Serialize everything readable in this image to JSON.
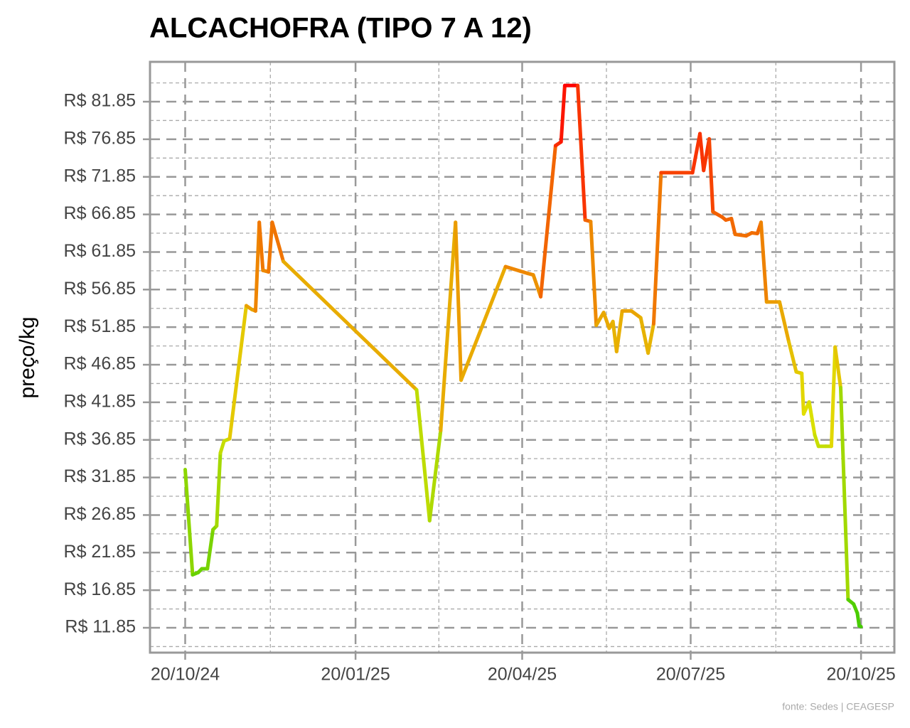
{
  "chart_data": {
    "type": "line",
    "title": "ALCACHOFRA (TIPO 7 A 12)",
    "y_label": "preço/kg",
    "caption": "fonte: Sedes | CEAGESP",
    "x": [
      "2024-10-20",
      "2024-10-24",
      "2024-10-27",
      "2024-10-29",
      "2024-11-01",
      "2024-11-04",
      "2024-11-06",
      "2024-11-08",
      "2024-11-10",
      "2024-11-13",
      "2024-11-22",
      "2024-11-25",
      "2024-11-27",
      "2024-11-29",
      "2024-12-01",
      "2024-12-04",
      "2024-12-06",
      "2024-12-12",
      "2025-02-22",
      "2025-03-01",
      "2025-03-07",
      "2025-03-15",
      "2025-03-18",
      "2025-04-11",
      "2025-04-23",
      "2025-04-26",
      "2025-04-30",
      "2025-05-08",
      "2025-05-11",
      "2025-05-13",
      "2025-05-20",
      "2025-05-24",
      "2025-05-27",
      "2025-05-30",
      "2025-06-03",
      "2025-06-06",
      "2025-06-08",
      "2025-06-10",
      "2025-06-13",
      "2025-06-18",
      "2025-06-23",
      "2025-06-27",
      "2025-06-30",
      "2025-07-04",
      "2025-07-21",
      "2025-07-25",
      "2025-07-27",
      "2025-07-30",
      "2025-08-01",
      "2025-08-06",
      "2025-08-08",
      "2025-08-11",
      "2025-08-13",
      "2025-08-19",
      "2025-08-22",
      "2025-08-25",
      "2025-08-27",
      "2025-08-30",
      "2025-09-06",
      "2025-09-11",
      "2025-09-15",
      "2025-09-18",
      "2025-09-19",
      "2025-09-22",
      "2025-09-25",
      "2025-09-27",
      "2025-10-01",
      "2025-10-04",
      "2025-10-06",
      "2025-10-09",
      "2025-10-13",
      "2025-10-16",
      "2025-10-18",
      "2025-10-19",
      "2025-10-20"
    ],
    "values": [
      32.9,
      18.9,
      19.2,
      19.7,
      19.7,
      24.9,
      25.4,
      35.1,
      36.7,
      37.0,
      54.7,
      54.2,
      54.0,
      65.8,
      59.4,
      59.2,
      65.8,
      60.6,
      43.5,
      26.1,
      38.1,
      65.8,
      44.8,
      59.9,
      59.0,
      58.8,
      55.9,
      76.0,
      76.5,
      84.0,
      84.0,
      66.1,
      65.9,
      52.1,
      53.8,
      51.7,
      52.6,
      48.6,
      54.0,
      54.0,
      53.1,
      48.4,
      52.3,
      72.4,
      72.4,
      77.6,
      72.7,
      76.9,
      67.2,
      66.5,
      66.1,
      66.3,
      64.2,
      64.0,
      64.4,
      64.3,
      65.8,
      55.2,
      55.2,
      49.9,
      45.9,
      45.7,
      40.3,
      41.9,
      37.5,
      36.0,
      36.0,
      36.0,
      49.2,
      43.8,
      15.6,
      15.0,
      13.8,
      12.1,
      12.0
    ],
    "low_color": "#44cc00",
    "high_color": "#ff0000",
    "xlim": [
      "2024-10-01",
      "2025-11-07"
    ],
    "xticks": [
      {
        "value": "2024-10-20",
        "label": "20/10/24"
      },
      {
        "value": "2025-01-20",
        "label": "20/01/25"
      },
      {
        "value": "2025-04-20",
        "label": "20/04/25"
      },
      {
        "value": "2025-07-20",
        "label": "20/07/25"
      },
      {
        "value": "2025-10-20",
        "label": "20/10/25"
      }
    ],
    "ylim": [
      8.54,
      87.15
    ],
    "yticks": [
      {
        "value": 11.85,
        "label": "R$ 11.85"
      },
      {
        "value": 16.85,
        "label": "R$ 16.85"
      },
      {
        "value": 21.85,
        "label": "R$ 21.85"
      },
      {
        "value": 26.85,
        "label": "R$ 26.85"
      },
      {
        "value": 31.85,
        "label": "R$ 31.85"
      },
      {
        "value": 36.85,
        "label": "R$ 36.85"
      },
      {
        "value": 41.85,
        "label": "R$ 41.85"
      },
      {
        "value": 46.85,
        "label": "R$ 46.85"
      },
      {
        "value": 51.85,
        "label": "R$ 51.85"
      },
      {
        "value": 56.85,
        "label": "R$ 56.85"
      },
      {
        "value": 61.85,
        "label": "R$ 61.85"
      },
      {
        "value": 66.85,
        "label": "R$ 66.85"
      },
      {
        "value": 71.85,
        "label": "R$ 71.85"
      },
      {
        "value": 76.85,
        "label": "R$ 76.85"
      },
      {
        "value": 81.85,
        "label": "R$ 81.85"
      }
    ],
    "grid": true
  }
}
